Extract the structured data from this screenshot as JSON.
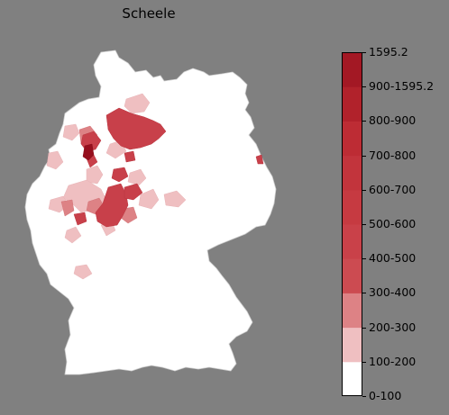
{
  "title": "Scheele",
  "legend": {
    "labels": [
      "1595.2",
      "900-1595.2",
      "800-900",
      "700-800",
      "600-700",
      "500-600",
      "400-500",
      "300-400",
      "200-300",
      "100-200",
      "0-100"
    ],
    "colors": [
      "#ffffff",
      "#efbfc1",
      "#dd8285",
      "#cc4b51",
      "#c94149",
      "#c63a41",
      "#c2343c",
      "#bd2c34",
      "#b1222b",
      "#a31824",
      "#960f1d"
    ]
  },
  "colors": {
    "background": "#808080",
    "land": "#ffffff",
    "border": "#cfcfcf"
  }
}
